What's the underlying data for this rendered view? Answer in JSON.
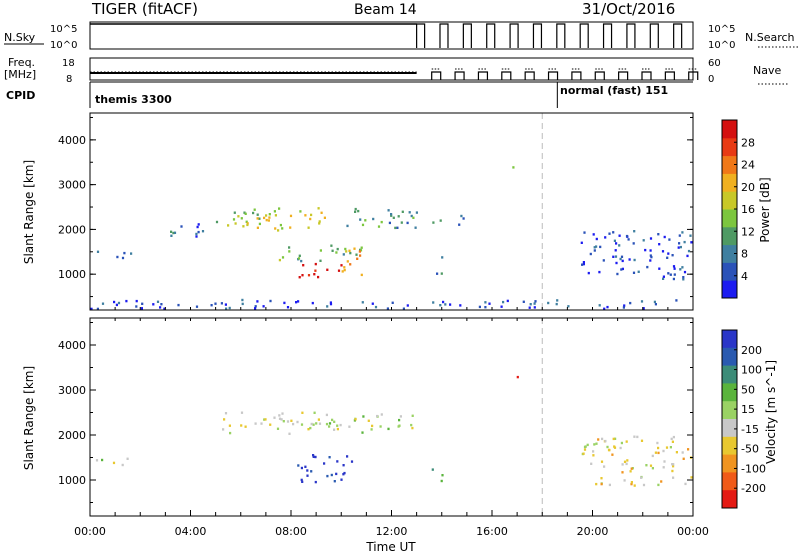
{
  "header": {
    "title": "TIGER (fitACF)",
    "beam": "Beam 14",
    "date": "31/Oct/2016"
  },
  "aux_panels": {
    "nsky_label": "N.Sky",
    "nsky_ticks": [
      "10^5",
      "10^0"
    ],
    "nsearch_label": "N.Search",
    "nsearch_ticks": [
      "10^5",
      "10^0"
    ],
    "freq_label_1": "Freq.",
    "freq_label_2": "[MHz]",
    "freq_ticks": [
      "18",
      "8"
    ],
    "nave_label": "Nave",
    "nave_ticks": [
      "60",
      "0"
    ],
    "cpid_label": "CPID",
    "cpid_1": "themis 3300",
    "cpid_2": "normal (fast) 151",
    "cpid_switch_hour": 18.6
  },
  "chart_data": [
    {
      "type": "heatmap",
      "panel": "power",
      "ylabel": "Slant Range [km]",
      "ylim": [
        200,
        4600
      ],
      "yticks": [
        "1000",
        "2000",
        "3000",
        "4000"
      ],
      "xlim": [
        0,
        24
      ],
      "colorbar_label": "Power [dB]",
      "colorbar_ticks": [
        "4",
        "8",
        "12",
        "16",
        "20",
        "24",
        "28"
      ],
      "colorbar_colors": [
        "#1c1cf0",
        "#2a52b8",
        "#3f7fa0",
        "#4f9a64",
        "#7cc63e",
        "#c8c828",
        "#f0b020",
        "#f07818",
        "#e83a14",
        "#d41010"
      ],
      "echo_regions": [
        {
          "t0": 0.0,
          "t1": 1.6,
          "r0": 1350,
          "r1": 1550,
          "level": 0.15
        },
        {
          "t0": 2.8,
          "t1": 4.5,
          "r0": 1800,
          "r1": 2200,
          "level": 0.2
        },
        {
          "t0": 5.0,
          "t1": 6.8,
          "r0": 2050,
          "r1": 2550,
          "level": 0.45
        },
        {
          "t0": 6.2,
          "t1": 9.8,
          "r0": 2000,
          "r1": 2500,
          "level": 0.55
        },
        {
          "t0": 9.5,
          "t1": 13.0,
          "r0": 2050,
          "r1": 2500,
          "level": 0.3
        },
        {
          "t0": 7.5,
          "t1": 10.8,
          "r0": 1300,
          "r1": 1700,
          "level": 0.4
        },
        {
          "t0": 8.2,
          "t1": 10.0,
          "r0": 950,
          "r1": 1300,
          "level": 0.95
        },
        {
          "t0": 10.0,
          "t1": 11.0,
          "r0": 1000,
          "r1": 1650,
          "level": 0.75
        },
        {
          "t0": 13.6,
          "t1": 14.0,
          "r0": 1000,
          "r1": 1500,
          "level": 0.3
        },
        {
          "t0": 13.6,
          "t1": 14.0,
          "r0": 2100,
          "r1": 2450,
          "level": 0.2
        },
        {
          "t0": 14.5,
          "t1": 15.0,
          "r0": 2100,
          "r1": 2450,
          "level": 0.2
        },
        {
          "t0": 16.8,
          "t1": 17.1,
          "r0": 3300,
          "r1": 3500,
          "level": 0.3
        },
        {
          "t0": 19.5,
          "t1": 23.9,
          "r0": 900,
          "r1": 2000,
          "level": 0.12
        },
        {
          "t0": 0.0,
          "t1": 24.0,
          "r0": 250,
          "r1": 450,
          "level": 0.15
        }
      ],
      "data_gap_hour": 18.0
    },
    {
      "type": "heatmap",
      "panel": "velocity",
      "ylabel": "Slant Range [km]",
      "ylim": [
        200,
        4600
      ],
      "yticks": [
        "1000",
        "2000",
        "3000",
        "4000"
      ],
      "xlim": [
        0,
        24
      ],
      "xticks": [
        "00:00",
        "04:00",
        "08:00",
        "12:00",
        "16:00",
        "20:00",
        "00:00"
      ],
      "xlabel": "Time UT",
      "colorbar_label": "Velocity [m s^-1]",
      "colorbar_ticks": [
        "200",
        "100",
        "50",
        "15",
        "-15",
        "-50",
        "-100",
        "-200"
      ],
      "colorbar_colors": [
        "#2a36c8",
        "#2a5ab0",
        "#3c8c78",
        "#5ab43c",
        "#9ad264",
        "#c8c8c8",
        "#e8c830",
        "#f09420",
        "#f05a18",
        "#e41a14"
      ],
      "echo_regions": [
        {
          "t0": 0.0,
          "t1": 1.6,
          "r0": 1350,
          "r1": 1550,
          "level": 0.5
        },
        {
          "t0": 5.0,
          "t1": 9.8,
          "r0": 2050,
          "r1": 2550,
          "level": 0.55
        },
        {
          "t0": 9.5,
          "t1": 13.0,
          "r0": 2050,
          "r1": 2500,
          "level": 0.5
        },
        {
          "t0": 8.2,
          "t1": 10.5,
          "r0": 950,
          "r1": 1600,
          "level": 0.0
        },
        {
          "t0": 13.6,
          "t1": 14.0,
          "r0": 1000,
          "r1": 1500,
          "level": 0.35
        },
        {
          "t0": 16.8,
          "t1": 17.1,
          "r0": 3300,
          "r1": 3500,
          "level": 0.95
        },
        {
          "t0": 19.5,
          "t1": 23.9,
          "r0": 900,
          "r1": 2000,
          "level": 0.6
        }
      ],
      "data_gap_hour": 18.0
    }
  ]
}
